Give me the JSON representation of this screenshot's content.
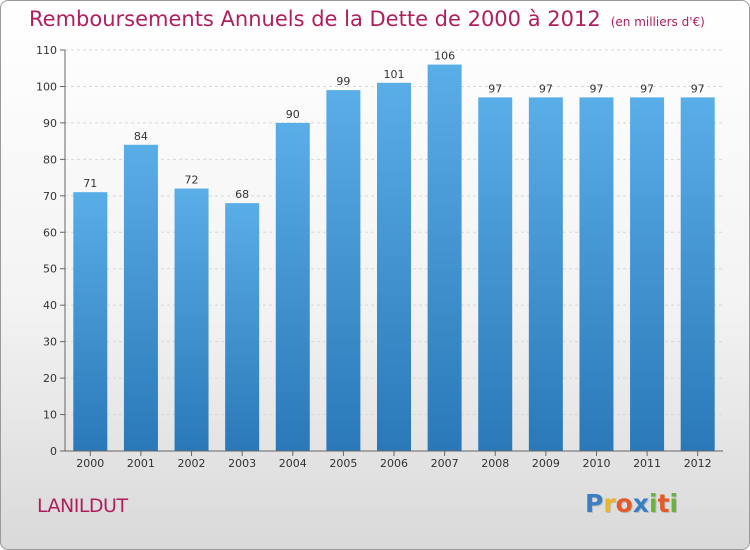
{
  "title": "Remboursements Annuels de la Dette de 2000 à 2012",
  "subtitle": "(en milliers d'€)",
  "commune": "LANILDUT",
  "logo": {
    "text": "Proxiti",
    "letters": [
      {
        "ch": "P",
        "color": "#3a7fc4"
      },
      {
        "ch": "r",
        "color": "#e8b52b"
      },
      {
        "ch": "o",
        "color": "#e25a2b"
      },
      {
        "ch": "x",
        "color": "#3a7fc4"
      },
      {
        "ch": "i",
        "color": "#6ab23e"
      },
      {
        "ch": "t",
        "color": "#e25a2b"
      },
      {
        "ch": "i",
        "color": "#6ab23e"
      }
    ]
  },
  "colors": {
    "title": "#b01e5e",
    "bar_top": "#5aaee8",
    "bar_bottom": "#2a78b8"
  },
  "chart_data": {
    "type": "bar",
    "categories": [
      "2000",
      "2001",
      "2002",
      "2003",
      "2004",
      "2005",
      "2006",
      "2007",
      "2008",
      "2009",
      "2010",
      "2011",
      "2012"
    ],
    "values": [
      71,
      84,
      72,
      68,
      90,
      99,
      101,
      106,
      97,
      97,
      97,
      97,
      97
    ],
    "ylim": [
      0,
      110
    ],
    "yticks": [
      0,
      10,
      20,
      30,
      40,
      50,
      60,
      70,
      80,
      90,
      100,
      110
    ],
    "grid": true,
    "data_labels": true
  }
}
